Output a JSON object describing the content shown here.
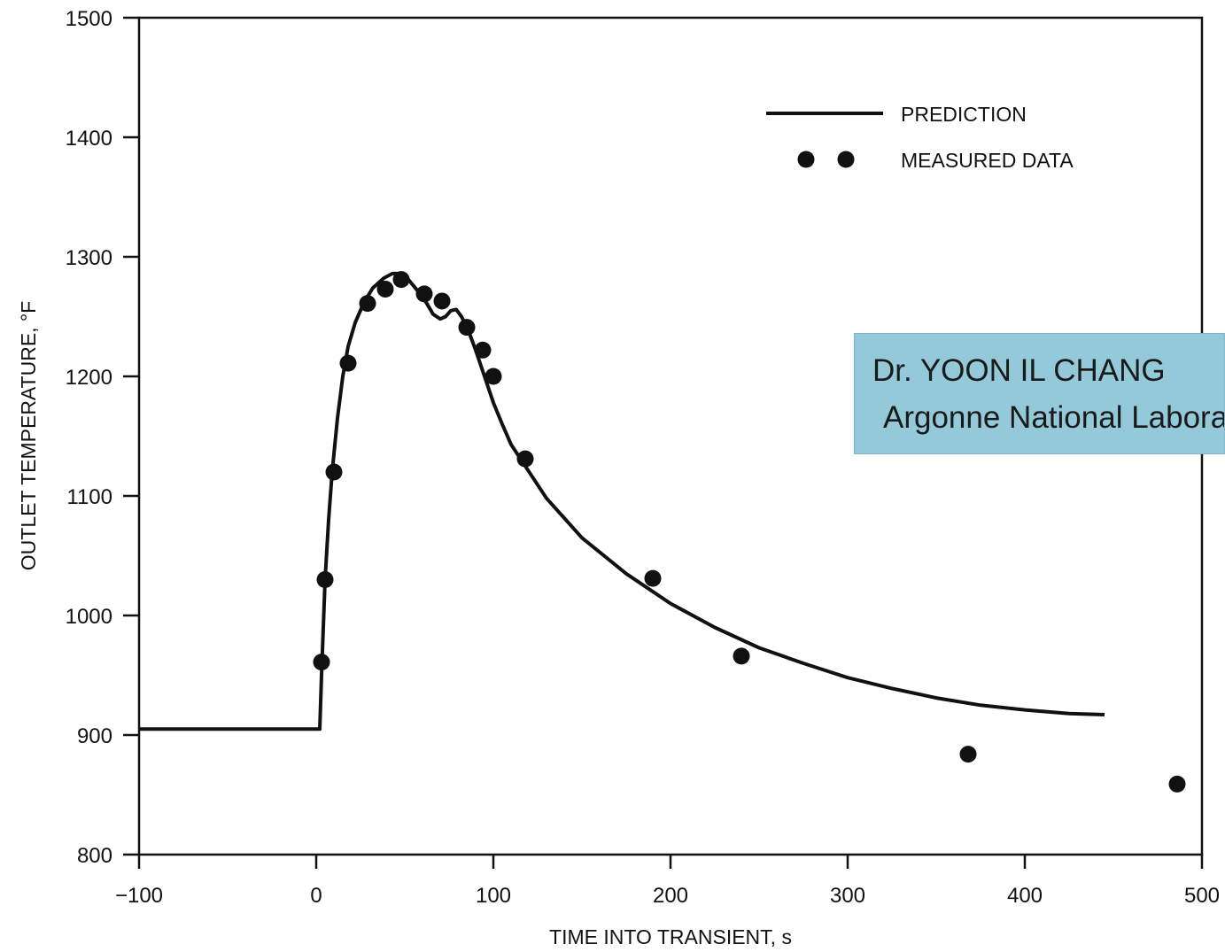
{
  "chart_data": {
    "type": "line",
    "xlabel": "TIME INTO TRANSIENT, s",
    "ylabel": "OUTLET TEMPERATURE, °F",
    "xlim": [
      -100,
      500
    ],
    "ylim": [
      800,
      1500
    ],
    "xticks": [
      -100,
      0,
      100,
      200,
      300,
      400,
      500
    ],
    "xtick_labels": [
      "−100",
      "0",
      "100",
      "200",
      "300",
      "400",
      "500"
    ],
    "yticks": [
      800,
      900,
      1000,
      1100,
      1200,
      1300,
      1400,
      1500
    ],
    "ytick_labels": [
      "800",
      "900",
      "1000",
      "1100",
      "1200",
      "1300",
      "1400",
      "1500"
    ],
    "grid": false,
    "legend_position": "top-right",
    "series": [
      {
        "name": "PREDICTION",
        "style": "line",
        "color": "#111111",
        "x": [
          -100,
          2,
          3,
          4,
          5,
          7,
          9,
          12,
          15,
          18,
          22,
          27,
          32,
          38,
          43,
          47,
          52,
          57,
          62,
          66,
          70,
          73,
          76,
          79,
          82,
          86,
          90,
          95,
          100,
          105,
          110,
          118,
          130,
          150,
          175,
          200,
          225,
          250,
          275,
          300,
          325,
          350,
          375,
          400,
          425,
          445
        ],
        "y": [
          905,
          905,
          950,
          990,
          1030,
          1080,
          1120,
          1165,
          1200,
          1225,
          1245,
          1262,
          1274,
          1282,
          1286,
          1286,
          1281,
          1272,
          1262,
          1252,
          1248,
          1250,
          1255,
          1256,
          1250,
          1238,
          1222,
          1200,
          1178,
          1160,
          1143,
          1125,
          1098,
          1065,
          1035,
          1010,
          990,
          973,
          960,
          948,
          939,
          931,
          925,
          921,
          918,
          917
        ]
      },
      {
        "name": "MEASURED DATA",
        "style": "scatter",
        "color": "#111111",
        "x": [
          3,
          5,
          10,
          18,
          29,
          39,
          48,
          61,
          71,
          85,
          94,
          100,
          118,
          190,
          240,
          368,
          486
        ],
        "y": [
          961,
          1030,
          1120,
          1211,
          1261,
          1273,
          1281,
          1269,
          1263,
          1241,
          1222,
          1200,
          1131,
          1031,
          966,
          884,
          859
        ]
      }
    ]
  },
  "overlay": {
    "line1": "Dr. YOON IL CHANG",
    "line2": "Argonne National Laboratory"
  }
}
